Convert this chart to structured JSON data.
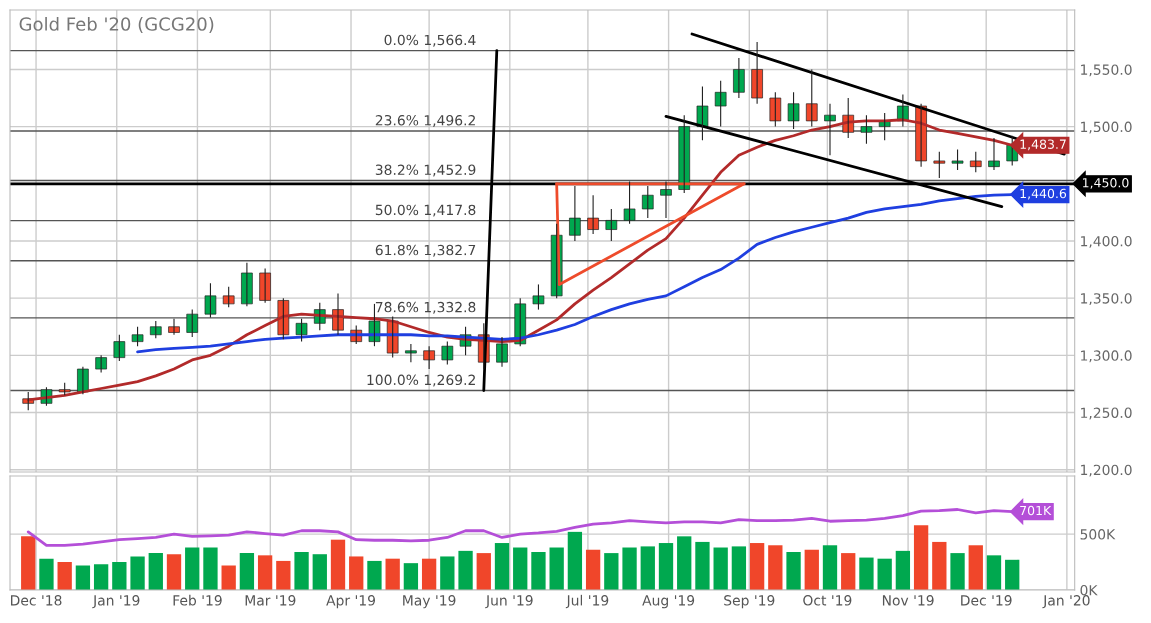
{
  "chart_data": [
    {
      "type": "candlestick",
      "title": "Gold Feb '20 (GCG20)",
      "x": [
        "2018-11-28",
        "2018-12-05",
        "2018-12-12",
        "2018-12-19",
        "2018-12-26",
        "2019-01-02",
        "2019-01-09",
        "2019-01-16",
        "2019-01-23",
        "2019-01-30",
        "2019-02-06",
        "2019-02-13",
        "2019-02-20",
        "2019-02-27",
        "2019-03-06",
        "2019-03-13",
        "2019-03-20",
        "2019-03-27",
        "2019-04-03",
        "2019-04-10",
        "2019-04-17",
        "2019-04-24",
        "2019-05-01",
        "2019-05-08",
        "2019-05-15",
        "2019-05-22",
        "2019-05-29",
        "2019-06-05",
        "2019-06-12",
        "2019-06-19",
        "2019-06-26",
        "2019-07-03",
        "2019-07-10",
        "2019-07-17",
        "2019-07-24",
        "2019-07-31",
        "2019-08-07",
        "2019-08-14",
        "2019-08-21",
        "2019-08-28",
        "2019-09-04",
        "2019-09-11",
        "2019-09-18",
        "2019-09-25",
        "2019-10-02",
        "2019-10-09",
        "2019-10-16",
        "2019-10-23",
        "2019-10-30",
        "2019-11-06",
        "2019-11-13",
        "2019-11-20",
        "2019-11-27",
        "2019-12-04",
        "2019-12-11"
      ],
      "series": [
        {
          "ohlc": [
            [
              1262,
              1268,
              1252,
              1258
            ],
            [
              1258,
              1272,
              1256,
              1270
            ],
            [
              1270,
              1276,
              1265,
              1268
            ],
            [
              1268,
              1290,
              1266,
              1288
            ],
            [
              1288,
              1300,
              1285,
              1298
            ],
            [
              1298,
              1318,
              1295,
              1312
            ],
            [
              1312,
              1325,
              1308,
              1318
            ],
            [
              1318,
              1330,
              1315,
              1325
            ],
            [
              1325,
              1332,
              1318,
              1320
            ],
            [
              1320,
              1340,
              1316,
              1336
            ],
            [
              1336,
              1363,
              1333,
              1352
            ],
            [
              1352,
              1360,
              1342,
              1345
            ],
            [
              1345,
              1381,
              1343,
              1372
            ],
            [
              1372,
              1376,
              1346,
              1348
            ],
            [
              1348,
              1350,
              1314,
              1318
            ],
            [
              1318,
              1332,
              1312,
              1328
            ],
            [
              1328,
              1346,
              1322,
              1340
            ],
            [
              1340,
              1354,
              1318,
              1322
            ],
            [
              1322,
              1326,
              1310,
              1312
            ],
            [
              1312,
              1345,
              1308,
              1330
            ],
            [
              1330,
              1334,
              1298,
              1302
            ],
            [
              1302,
              1310,
              1294,
              1304
            ],
            [
              1304,
              1308,
              1288,
              1296
            ],
            [
              1296,
              1312,
              1292,
              1308
            ],
            [
              1308,
              1325,
              1300,
              1318
            ],
            [
              1318,
              1328,
              1288,
              1294
            ],
            [
              1294,
              1316,
              1290,
              1310
            ],
            [
              1310,
              1350,
              1308,
              1345
            ],
            [
              1345,
              1362,
              1340,
              1352
            ],
            [
              1352,
              1415,
              1350,
              1405
            ],
            [
              1405,
              1448,
              1400,
              1420
            ],
            [
              1420,
              1440,
              1406,
              1410
            ],
            [
              1410,
              1428,
              1400,
              1418
            ],
            [
              1418,
              1452,
              1415,
              1428
            ],
            [
              1428,
              1448,
              1420,
              1440
            ],
            [
              1440,
              1452,
              1420,
              1445
            ],
            [
              1445,
              1510,
              1442,
              1500
            ],
            [
              1500,
              1535,
              1488,
              1518
            ],
            [
              1518,
              1540,
              1500,
              1530
            ],
            [
              1530,
              1560,
              1525,
              1550
            ],
            [
              1550,
              1574,
              1520,
              1525
            ],
            [
              1525,
              1530,
              1500,
              1505
            ],
            [
              1505,
              1530,
              1498,
              1520
            ],
            [
              1520,
              1550,
              1500,
              1505
            ],
            [
              1505,
              1520,
              1475,
              1510
            ],
            [
              1510,
              1525,
              1490,
              1495
            ],
            [
              1495,
              1510,
              1485,
              1500
            ],
            [
              1500,
              1512,
              1488,
              1505
            ],
            [
              1505,
              1528,
              1500,
              1518
            ],
            [
              1518,
              1520,
              1465,
              1470
            ],
            [
              1470,
              1478,
              1455,
              1468
            ],
            [
              1468,
              1480,
              1462,
              1470
            ],
            [
              1470,
              1478,
              1460,
              1465
            ],
            [
              1465,
              1490,
              1462,
              1470
            ],
            [
              1470,
              1492,
              1466,
              1483.7
            ]
          ],
          "colors": [
            "#f0462a",
            "#00a84f",
            "#f0462a",
            "#00a84f",
            "#00a84f",
            "#00a84f",
            "#00a84f",
            "#00a84f",
            "#f0462a",
            "#00a84f",
            "#00a84f",
            "#f0462a",
            "#00a84f",
            "#f0462a",
            "#f0462a",
            "#00a84f",
            "#00a84f",
            "#f0462a",
            "#f0462a",
            "#00a84f",
            "#f0462a",
            "#00a84f",
            "#f0462a",
            "#00a84f",
            "#00a84f",
            "#f0462a",
            "#00a84f",
            "#00a84f",
            "#00a84f",
            "#00a84f",
            "#00a84f",
            "#f0462a",
            "#00a84f",
            "#00a84f",
            "#00a84f",
            "#00a84f",
            "#00a84f",
            "#00a84f",
            "#00a84f",
            "#00a84f",
            "#f0462a",
            "#f0462a",
            "#00a84f",
            "#f0462a",
            "#00a84f",
            "#f0462a",
            "#00a84f",
            "#00a84f",
            "#00a84f",
            "#f0462a",
            "#f0462a",
            "#00a84f",
            "#f0462a",
            "#00a84f",
            "#00a84f"
          ]
        },
        {
          "type": "line",
          "color": "#b22a2a",
          "values": [
            1261,
            1263,
            1265,
            1268,
            1271,
            1274,
            1277,
            1282,
            1288,
            1296,
            1300,
            1308,
            1318,
            1326,
            1334,
            1336,
            1335,
            1334,
            1333,
            1332,
            1330,
            1325,
            1320,
            1316,
            1314,
            1313,
            1312,
            1313,
            1322,
            1331,
            1345,
            1357,
            1368,
            1380,
            1392,
            1402,
            1420,
            1440,
            1460,
            1475,
            1482,
            1488,
            1492,
            1497,
            1500,
            1504,
            1505,
            1505,
            1506,
            1503,
            1497,
            1494,
            1491,
            1488,
            1483.7
          ],
          "value_labels": [
            null,
            null,
            null,
            null,
            null,
            null,
            null,
            null,
            null,
            null,
            null,
            null,
            null,
            null,
            null,
            null,
            null,
            null,
            null,
            null,
            null,
            null,
            null,
            null,
            null,
            null,
            null,
            null,
            null,
            null,
            null,
            null,
            null,
            null,
            null,
            null,
            null,
            null,
            null,
            null,
            null,
            null,
            null,
            null,
            null,
            null,
            null,
            null,
            null,
            null,
            null,
            null,
            null,
            null,
            "1,483.7"
          ]
        },
        {
          "type": "line",
          "color": "#1f3fe0",
          "values": [
            null,
            null,
            null,
            null,
            null,
            null,
            1303,
            1305,
            1306,
            1307,
            1308,
            1310,
            1312,
            1314,
            1315,
            1316,
            1317,
            1318,
            1318,
            1318,
            1318,
            1318,
            1317,
            1317,
            1316,
            1315,
            1314,
            1315,
            1318,
            1322,
            1327,
            1334,
            1340,
            1345,
            1349,
            1352,
            1360,
            1368,
            1375,
            1385,
            1397,
            1403,
            1408,
            1412,
            1416,
            1420,
            1425,
            1428,
            1430,
            1432,
            1435,
            1437,
            1439,
            1440,
            1440.6
          ],
          "value_labels": [
            null,
            null,
            null,
            null,
            null,
            null,
            null,
            null,
            null,
            null,
            null,
            null,
            null,
            null,
            null,
            null,
            null,
            null,
            null,
            null,
            null,
            null,
            null,
            null,
            null,
            null,
            null,
            null,
            null,
            null,
            null,
            null,
            null,
            null,
            null,
            null,
            null,
            null,
            null,
            null,
            null,
            null,
            null,
            null,
            null,
            null,
            null,
            null,
            null,
            null,
            null,
            null,
            null,
            null,
            "1,440.6"
          ]
        },
        {
          "type": "line",
          "color": "#000000",
          "x": [
            "2019-08-10",
            "2019-12-31"
          ],
          "values": [
            1581,
            1476
          ]
        },
        {
          "type": "line",
          "color": "#000000",
          "x": [
            "2019-07-31",
            "2019-12-07"
          ],
          "values": [
            1509,
            1430
          ]
        },
        {
          "type": "line",
          "color": "#000000",
          "x": [
            "2019-05-22",
            "2019-05-27"
          ],
          "values": [
            1269.2,
            1566.4
          ]
        },
        {
          "type": "line",
          "color": "#ee4b2b",
          "x": [
            "2019-06-19",
            "2019-06-20"
          ],
          "values": [
            1450,
            1362
          ]
        },
        {
          "type": "line",
          "color": "#ee4b2b",
          "x": [
            "2019-06-20",
            "2019-08-30"
          ],
          "values": [
            1362,
            1450
          ]
        },
        {
          "type": "line",
          "color": "#ee4b2b",
          "x": [
            "2019-06-19",
            "2019-08-30"
          ],
          "values": [
            1450,
            1450
          ]
        }
      ],
      "ref_lines": [
        {
          "axis": "y",
          "value": 1566.4,
          "label": "0.0% 1,566.4",
          "color": "#555555"
        },
        {
          "axis": "y",
          "value": 1496.2,
          "label": "23.6% 1,496.2",
          "color": "#555555"
        },
        {
          "axis": "y",
          "value": 1452.9,
          "label": "38.2% 1,452.9",
          "color": "#555555"
        },
        {
          "axis": "y",
          "value": 1417.8,
          "label": "50.0% 1,417.8",
          "color": "#555555"
        },
        {
          "axis": "y",
          "value": 1382.7,
          "label": "61.8% 1,382.7",
          "color": "#555555"
        },
        {
          "axis": "y",
          "value": 1332.8,
          "label": "78.6% 1,332.8",
          "color": "#555555"
        },
        {
          "axis": "y",
          "value": 1269.2,
          "label": "100.0% 1,269.2",
          "color": "#555555"
        },
        {
          "axis": "y",
          "value": 1450,
          "label": "1,450.0",
          "color": "#000000"
        }
      ],
      "xlim": [
        "2018-11-21",
        "2020-01-04"
      ],
      "xticks": [
        {
          "value": "2018-12-01",
          "label": null
        },
        {
          "value": "2019-01-01",
          "label": null
        },
        {
          "value": "2019-02-01",
          "label": null
        },
        {
          "value": "2019-03-01",
          "label": null
        },
        {
          "value": "2019-04-01",
          "label": null
        },
        {
          "value": "2019-05-01",
          "label": null
        },
        {
          "value": "2019-06-01",
          "label": null
        },
        {
          "value": "2019-07-01",
          "label": null
        },
        {
          "value": "2019-08-01",
          "label": null
        },
        {
          "value": "2019-09-01",
          "label": null
        },
        {
          "value": "2019-10-01",
          "label": null
        },
        {
          "value": "2019-11-01",
          "label": null
        },
        {
          "value": "2019-12-01",
          "label": null
        },
        {
          "value": "2020-01-01",
          "label": null
        }
      ],
      "ylim": [
        1198,
        1602
      ],
      "yticks": [
        {
          "value": 1200,
          "label": "1,200.0"
        },
        {
          "value": 1250,
          "label": "1,250.0"
        },
        {
          "value": 1300,
          "label": "1,300.0"
        },
        {
          "value": 1350,
          "label": "1,350.0"
        },
        {
          "value": 1400,
          "label": "1,400.0"
        },
        {
          "value": 1500,
          "label": "1,500.0"
        },
        {
          "value": 1550,
          "label": "1,550.0"
        }
      ],
      "grid": true,
      "tick_labels": "y"
    },
    {
      "type": "bar",
      "x": [
        "2018-11-28",
        "2018-12-05",
        "2018-12-12",
        "2018-12-19",
        "2018-12-26",
        "2019-01-02",
        "2019-01-09",
        "2019-01-16",
        "2019-01-23",
        "2019-01-30",
        "2019-02-06",
        "2019-02-13",
        "2019-02-20",
        "2019-02-27",
        "2019-03-06",
        "2019-03-13",
        "2019-03-20",
        "2019-03-27",
        "2019-04-03",
        "2019-04-10",
        "2019-04-17",
        "2019-04-24",
        "2019-05-01",
        "2019-05-08",
        "2019-05-15",
        "2019-05-22",
        "2019-05-29",
        "2019-06-05",
        "2019-06-12",
        "2019-06-19",
        "2019-06-26",
        "2019-07-03",
        "2019-07-10",
        "2019-07-17",
        "2019-07-24",
        "2019-07-31",
        "2019-08-07",
        "2019-08-14",
        "2019-08-21",
        "2019-08-28",
        "2019-09-04",
        "2019-09-11",
        "2019-09-18",
        "2019-09-25",
        "2019-10-02",
        "2019-10-09",
        "2019-10-16",
        "2019-10-23",
        "2019-10-30",
        "2019-11-06",
        "2019-11-13",
        "2019-11-20",
        "2019-11-27",
        "2019-12-04",
        "2019-12-11"
      ],
      "series": [
        {
          "values": [
            480,
            280,
            250,
            220,
            230,
            250,
            300,
            330,
            320,
            380,
            380,
            220,
            330,
            310,
            260,
            340,
            320,
            450,
            300,
            260,
            280,
            240,
            280,
            300,
            350,
            330,
            420,
            380,
            340,
            380,
            520,
            360,
            330,
            380,
            390,
            420,
            480,
            430,
            380,
            390,
            420,
            400,
            340,
            360,
            400,
            330,
            290,
            280,
            350,
            580,
            430,
            330,
            400,
            310,
            270
          ],
          "colors": [
            "#f0462a",
            "#00a84f",
            "#f0462a",
            "#00a84f",
            "#00a84f",
            "#00a84f",
            "#00a84f",
            "#00a84f",
            "#f0462a",
            "#00a84f",
            "#00a84f",
            "#f0462a",
            "#00a84f",
            "#f0462a",
            "#f0462a",
            "#00a84f",
            "#00a84f",
            "#f0462a",
            "#f0462a",
            "#00a84f",
            "#f0462a",
            "#00a84f",
            "#f0462a",
            "#00a84f",
            "#00a84f",
            "#f0462a",
            "#00a84f",
            "#00a84f",
            "#00a84f",
            "#00a84f",
            "#00a84f",
            "#f0462a",
            "#00a84f",
            "#00a84f",
            "#00a84f",
            "#00a84f",
            "#00a84f",
            "#00a84f",
            "#00a84f",
            "#00a84f",
            "#f0462a",
            "#f0462a",
            "#00a84f",
            "#f0462a",
            "#00a84f",
            "#f0462a",
            "#00a84f",
            "#00a84f",
            "#00a84f",
            "#f0462a",
            "#f0462a",
            "#00a84f",
            "#f0462a",
            "#00a84f",
            "#00a84f"
          ]
        },
        {
          "type": "line",
          "color": "#b44fd8",
          "values": [
            520,
            400,
            400,
            410,
            430,
            450,
            460,
            470,
            500,
            480,
            485,
            490,
            520,
            505,
            490,
            530,
            530,
            520,
            450,
            445,
            445,
            440,
            445,
            470,
            530,
            530,
            470,
            500,
            510,
            525,
            560,
            590,
            600,
            620,
            610,
            600,
            610,
            610,
            600,
            630,
            620,
            620,
            625,
            640,
            615,
            620,
            625,
            640,
            665,
            705,
            710,
            720,
            690,
            710,
            701
          ],
          "value_labels": [
            null,
            null,
            null,
            null,
            null,
            null,
            null,
            null,
            null,
            null,
            null,
            null,
            null,
            null,
            null,
            null,
            null,
            null,
            null,
            null,
            null,
            null,
            null,
            null,
            null,
            null,
            null,
            null,
            null,
            null,
            null,
            null,
            null,
            null,
            null,
            null,
            null,
            null,
            null,
            null,
            null,
            null,
            null,
            null,
            null,
            null,
            null,
            null,
            null,
            null,
            null,
            null,
            null,
            null,
            "701K"
          ]
        }
      ],
      "xlim": [
        "2018-11-21",
        "2020-01-04"
      ],
      "xticks": [
        {
          "value": "2018-12-01",
          "label": "Dec '18"
        },
        {
          "value": "2019-01-01",
          "label": "Jan '19"
        },
        {
          "value": "2019-02-01",
          "label": "Feb '19"
        },
        {
          "value": "2019-03-01",
          "label": "Mar '19"
        },
        {
          "value": "2019-04-01",
          "label": "Apr '19"
        },
        {
          "value": "2019-05-01",
          "label": "May '19"
        },
        {
          "value": "2019-06-01",
          "label": "Jun '19"
        },
        {
          "value": "2019-07-01",
          "label": "Jul '19"
        },
        {
          "value": "2019-08-01",
          "label": "Aug '19"
        },
        {
          "value": "2019-09-01",
          "label": "Sep '19"
        },
        {
          "value": "2019-10-01",
          "label": "Oct '19"
        },
        {
          "value": "2019-11-01",
          "label": "Nov '19"
        },
        {
          "value": "2019-12-01",
          "label": "Dec '19"
        },
        {
          "value": "2020-01-01",
          "label": "Jan '20"
        }
      ],
      "ylim": [
        0,
        1020
      ],
      "yticks": [
        {
          "value": 0,
          "label": "0K"
        },
        {
          "value": 500,
          "label": "500K"
        }
      ],
      "grid": true
    }
  ]
}
